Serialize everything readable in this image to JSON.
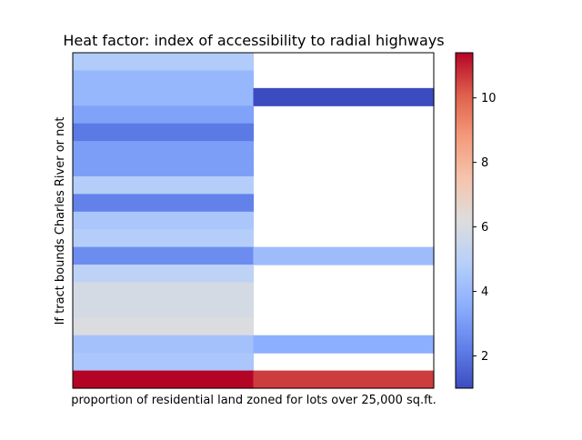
{
  "chart_data": {
    "type": "heatmap",
    "title": "Heat factor: index of accessibility to radial highways",
    "xlabel": "proportion of residential land zoned for lots over 25,000 sq.ft.",
    "ylabel": "If tract bounds Charles River or not",
    "columns": 2,
    "rows": 19,
    "cells": [
      [
        4.7,
        null
      ],
      [
        3.9,
        null
      ],
      [
        3.9,
        1.0
      ],
      [
        3.2,
        null
      ],
      [
        2.1,
        null
      ],
      [
        3.1,
        null
      ],
      [
        3.1,
        null
      ],
      [
        4.8,
        null
      ],
      [
        2.3,
        null
      ],
      [
        4.5,
        null
      ],
      [
        4.8,
        null
      ],
      [
        2.6,
        4.1
      ],
      [
        5.1,
        null
      ],
      [
        5.9,
        null
      ],
      [
        5.9,
        null
      ],
      [
        6.1,
        null
      ],
      [
        4.3,
        3.6
      ],
      [
        4.5,
        null
      ],
      [
        11.4,
        10.6
      ]
    ],
    "colorbar": {
      "min": 1.0,
      "max": 11.4,
      "ticks": [
        2,
        4,
        6,
        8,
        10
      ],
      "colormap": "coolwarm"
    },
    "grid": false
  }
}
